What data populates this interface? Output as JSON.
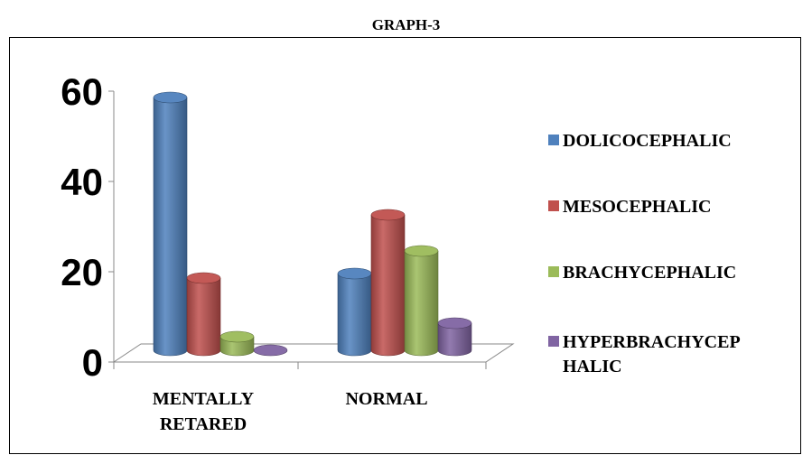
{
  "title": "GRAPH-3",
  "chart_data": {
    "type": "bar",
    "title": "GRAPH-3",
    "categories": [
      "MENTALLY RETARED",
      "NORMAL"
    ],
    "category_lines": [
      [
        "MENTALLY",
        "RETARED"
      ],
      [
        "NORMAL"
      ]
    ],
    "yticks": [
      "0",
      "20",
      "40",
      "60"
    ],
    "ylim": [
      0,
      60
    ],
    "series": [
      {
        "name": "DOLICOCEPHALIC",
        "values": [
          56,
          17
        ],
        "color": "#4f81bd"
      },
      {
        "name": "MESOCEPHALIC",
        "values": [
          16,
          30
        ],
        "color": "#c0504d"
      },
      {
        "name": "BRACHYCEPHALIC",
        "values": [
          3,
          22
        ],
        "color": "#9bbb59"
      },
      {
        "name": "HYPERBRACHYCEPHALIC",
        "values": [
          0,
          6
        ],
        "color": "#8064a2"
      }
    ],
    "legend": {
      "position": "right",
      "entries": [
        {
          "lines": [
            "DOLICOCEPHALIC"
          ]
        },
        {
          "lines": [
            "MESOCEPHALIC"
          ]
        },
        {
          "lines": [
            "BRACHYCEPHALIC"
          ]
        },
        {
          "lines": [
            "HYPERBRACHYCEP",
            "HALIC"
          ]
        }
      ]
    },
    "grid": false,
    "style": "3d-cylinder"
  }
}
